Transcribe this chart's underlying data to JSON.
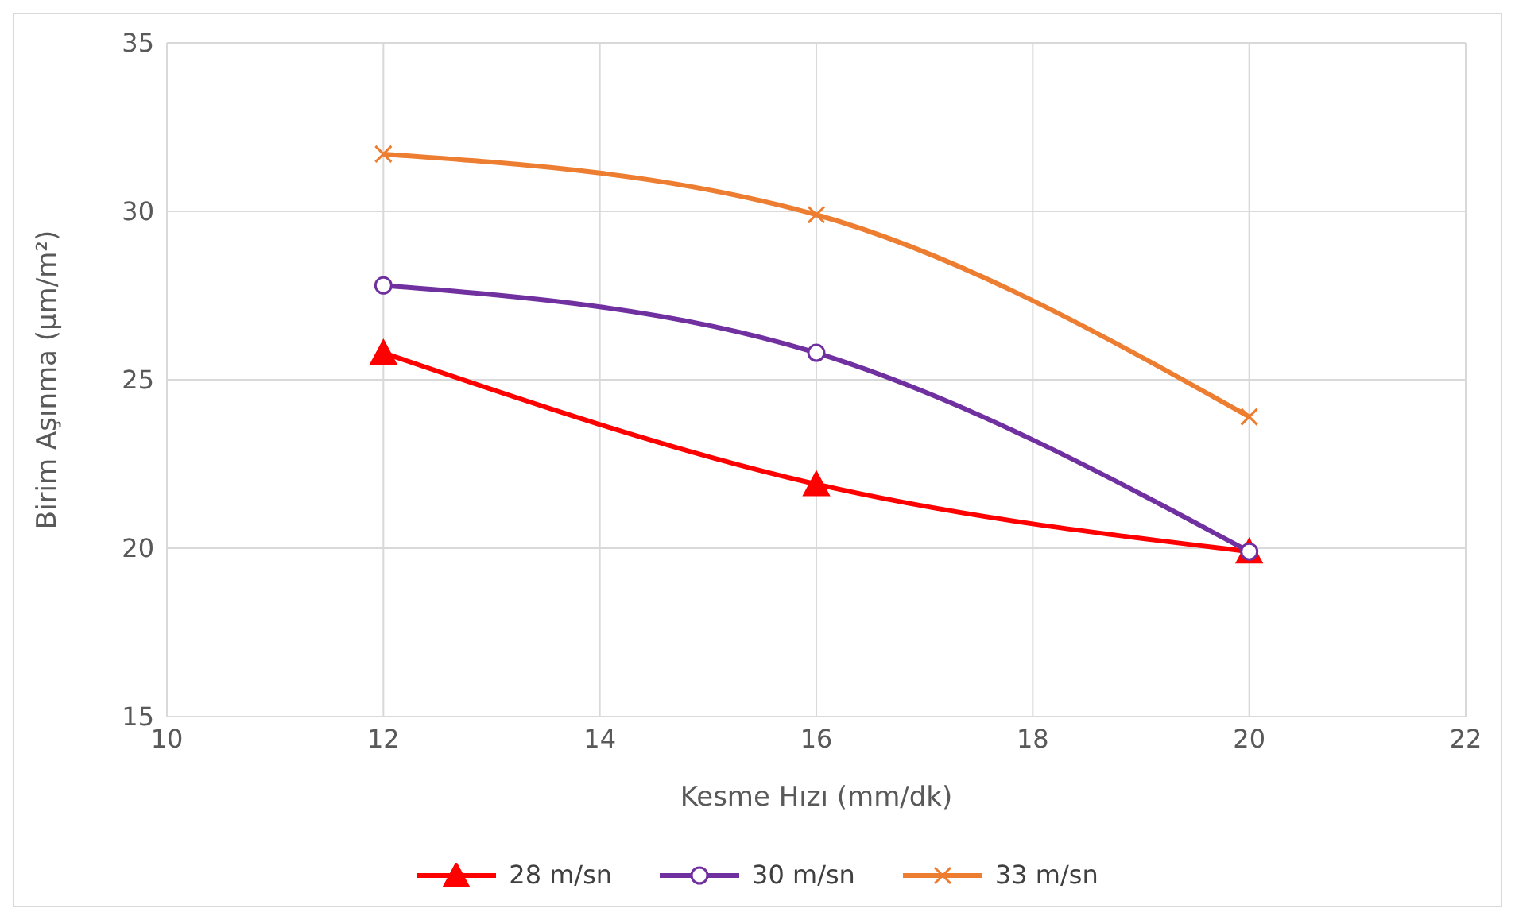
{
  "chart_data": {
    "type": "line",
    "xlabel": "Kesme Hızı (mm/dk)",
    "ylabel": "Birim Aşınma (µm/m²)",
    "x": [
      12,
      16,
      20
    ],
    "series": [
      {
        "name": "28 m/sn",
        "color": "#ff0000",
        "marker": "triangle",
        "values": [
          25.8,
          21.9,
          19.9
        ]
      },
      {
        "name": "30 m/sn",
        "color": "#7030a0",
        "marker": "circle",
        "values": [
          27.8,
          25.8,
          19.9
        ]
      },
      {
        "name": "33 m/sn",
        "color": "#ed7d31",
        "marker": "cross",
        "values": [
          31.7,
          29.9,
          23.9
        ]
      }
    ],
    "xlim": [
      10,
      22
    ],
    "xticks": [
      10,
      12,
      14,
      16,
      18,
      20,
      22
    ],
    "ylim": [
      15,
      35
    ],
    "yticks": [
      15,
      20,
      25,
      30,
      35
    ],
    "grid": true,
    "legend": "bottom",
    "line_style": "solid"
  }
}
